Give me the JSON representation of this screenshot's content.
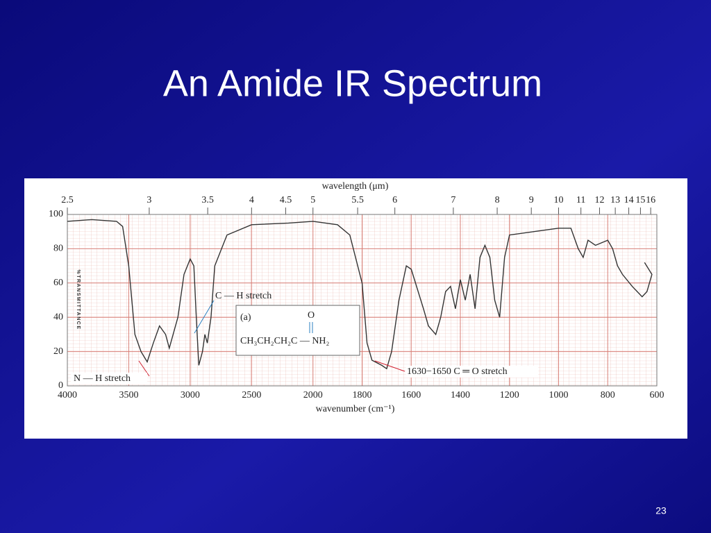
{
  "title": "An Amide IR Spectrum",
  "page_number": "23",
  "chart_data": {
    "type": "line",
    "x_label": "wavenumber (cm⁻¹)",
    "x2_label": "wavelength (μm)",
    "y_label": "%TRANSMITTANCE",
    "xlim": [
      4000,
      600
    ],
    "xticks": [
      4000,
      3500,
      3000,
      2500,
      2000,
      1800,
      1600,
      1400,
      1200,
      1000,
      800,
      600
    ],
    "xscale_break": 2000,
    "x2ticks": [
      2.5,
      3,
      3.5,
      4,
      4.5,
      5,
      5.5,
      6,
      7,
      8,
      9,
      10,
      11,
      12,
      13,
      14,
      15,
      16
    ],
    "ylim": [
      0,
      100
    ],
    "yticks": [
      0,
      20,
      40,
      60,
      80,
      100
    ],
    "grid": true,
    "annotations": [
      "C — H stretch",
      "N — H stretch",
      "1630−1650 C ═ O stretch",
      "(a)",
      "O",
      "CH₃CH₂CH₂C — NH₂"
    ],
    "series": [
      {
        "name": "spectrum",
        "color": "#333333",
        "x": [
          4000,
          3800,
          3600,
          3550,
          3500,
          3450,
          3400,
          3350,
          3300,
          3250,
          3200,
          3170,
          3100,
          3050,
          3000,
          2970,
          2950,
          2930,
          2900,
          2880,
          2860,
          2830,
          2800,
          2700,
          2500,
          2200,
          2000,
          1900,
          1850,
          1800,
          1780,
          1760,
          1720,
          1700,
          1680,
          1650,
          1620,
          1600,
          1550,
          1530,
          1500,
          1480,
          1460,
          1440,
          1420,
          1400,
          1380,
          1360,
          1340,
          1320,
          1300,
          1280,
          1260,
          1240,
          1220,
          1200,
          1100,
          1000,
          950,
          920,
          900,
          880,
          850,
          800,
          780,
          760,
          740,
          700,
          680,
          660,
          640,
          620,
          650
        ],
        "values": [
          96,
          97,
          96,
          93,
          70,
          30,
          20,
          14,
          25,
          35,
          30,
          22,
          40,
          65,
          74,
          70,
          40,
          12,
          20,
          30,
          25,
          40,
          70,
          88,
          94,
          95,
          96,
          94,
          88,
          60,
          25,
          15,
          12,
          10,
          20,
          50,
          70,
          68,
          45,
          35,
          30,
          40,
          55,
          58,
          45,
          62,
          50,
          65,
          45,
          75,
          82,
          75,
          50,
          40,
          75,
          88,
          90,
          92,
          92,
          80,
          75,
          85,
          82,
          85,
          80,
          70,
          65,
          58,
          55,
          52,
          55,
          65,
          72
        ]
      }
    ]
  }
}
